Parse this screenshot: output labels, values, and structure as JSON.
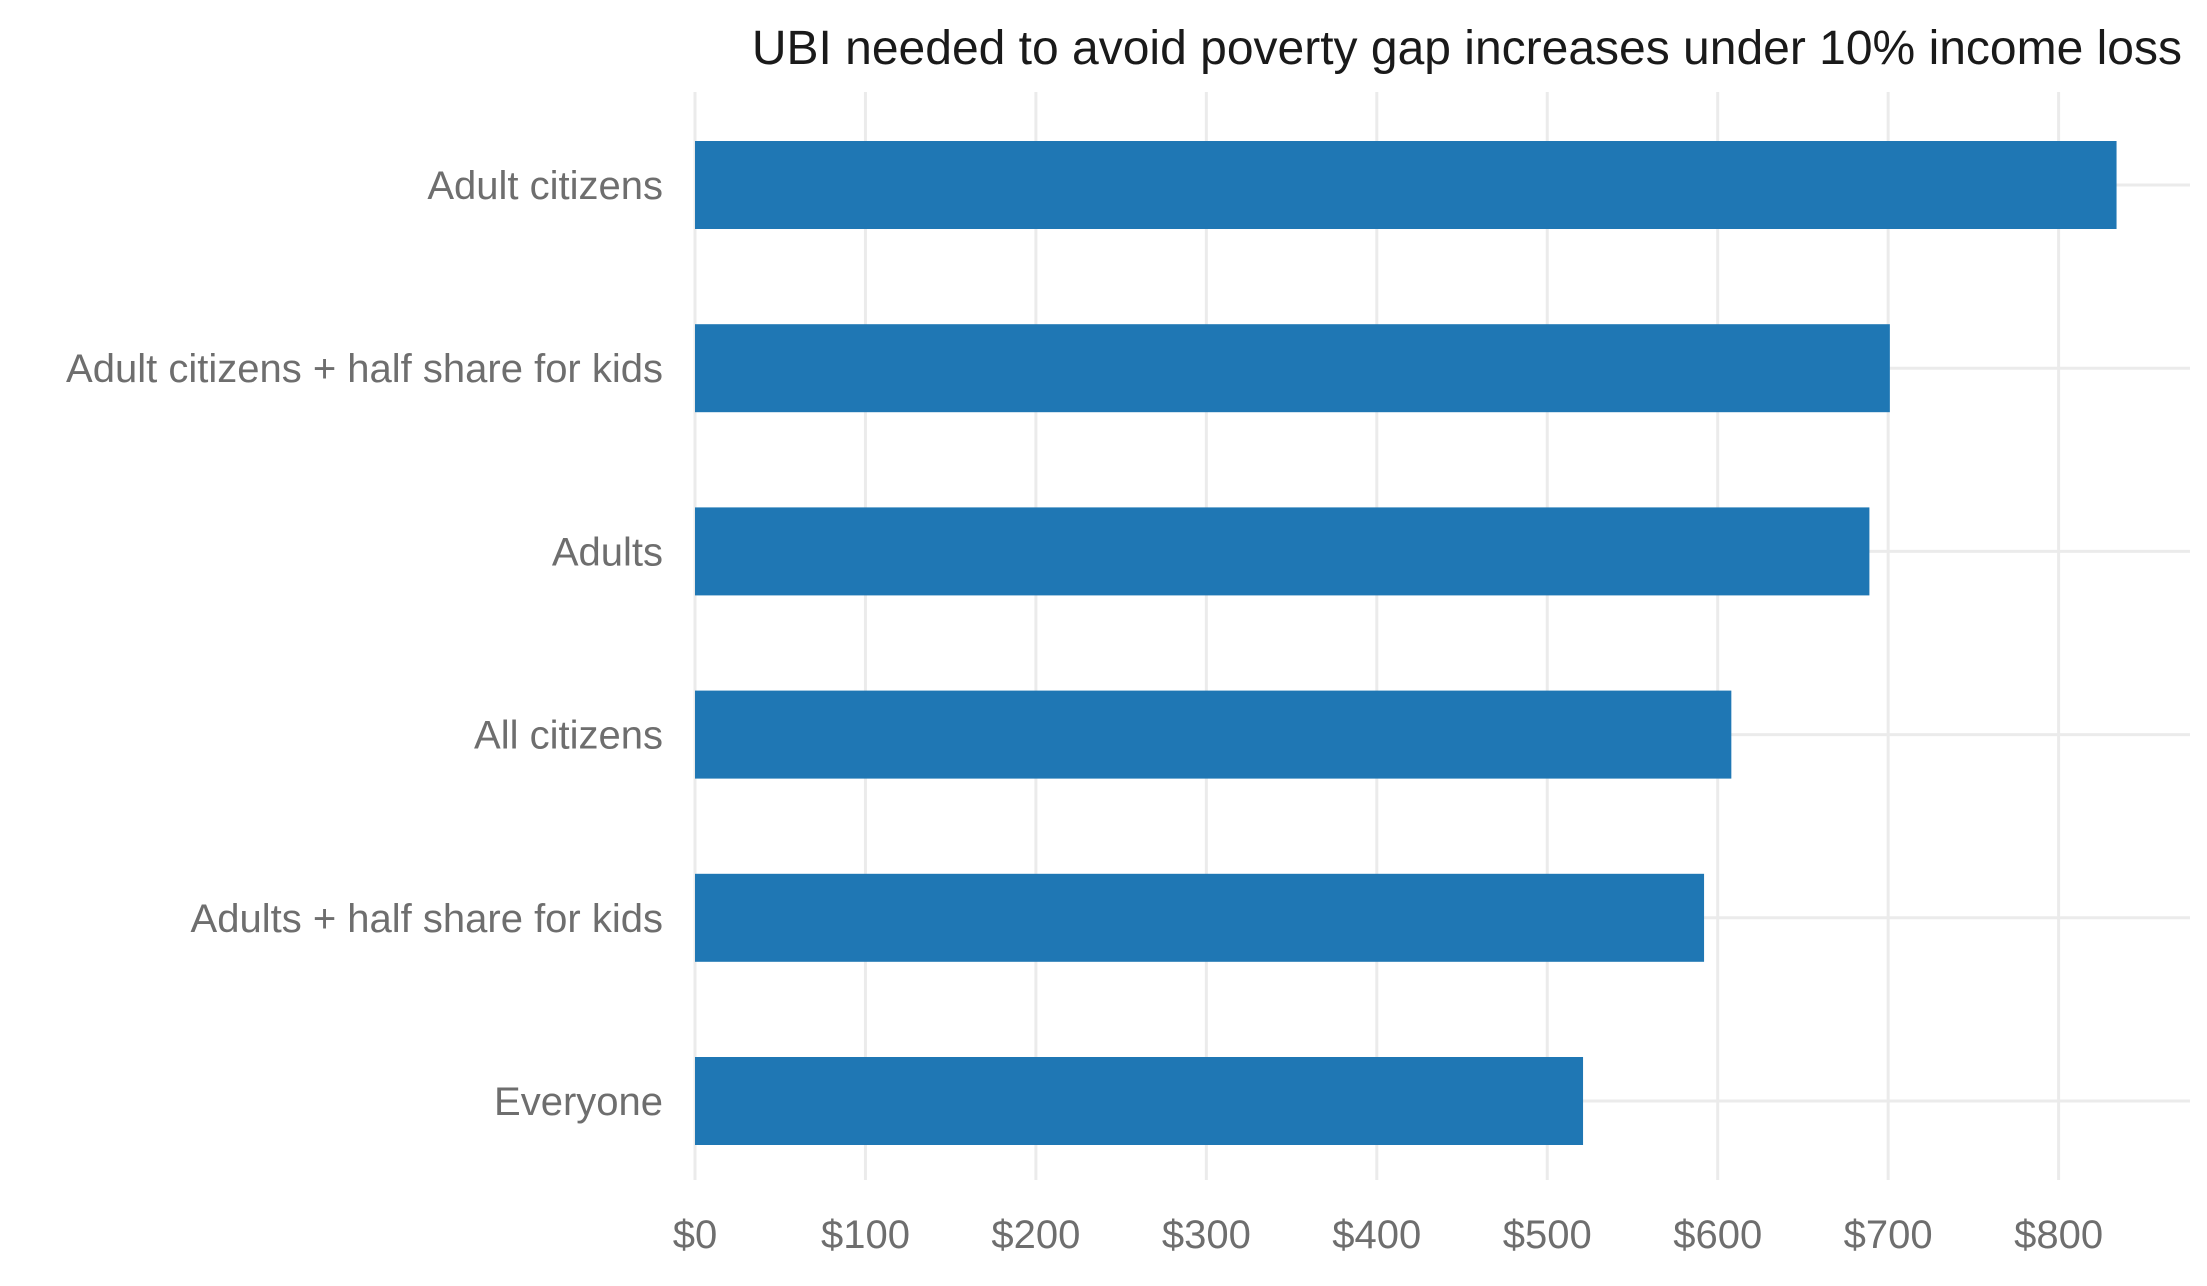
{
  "chart_data": {
    "type": "bar",
    "orientation": "horizontal",
    "title": "UBI needed to avoid poverty gap increases under 10% income loss",
    "xlabel": "",
    "ylabel": "",
    "categories": [
      "Adult citizens",
      "Adult citizens + half share for kids",
      "Adults",
      "All citizens",
      "Adults + half share for kids",
      "Everyone"
    ],
    "values": [
      834,
      701,
      689,
      608,
      592,
      521
    ],
    "xlim": [
      0,
      870
    ],
    "xticks": [
      0,
      100,
      200,
      300,
      400,
      500,
      600,
      700,
      800
    ],
    "xtick_labels": [
      "$0",
      "$100",
      "$200",
      "$300",
      "$400",
      "$500",
      "$600",
      "$700",
      "$800"
    ],
    "bar_color": "#1f77b4",
    "grid": true,
    "legend": "none"
  }
}
